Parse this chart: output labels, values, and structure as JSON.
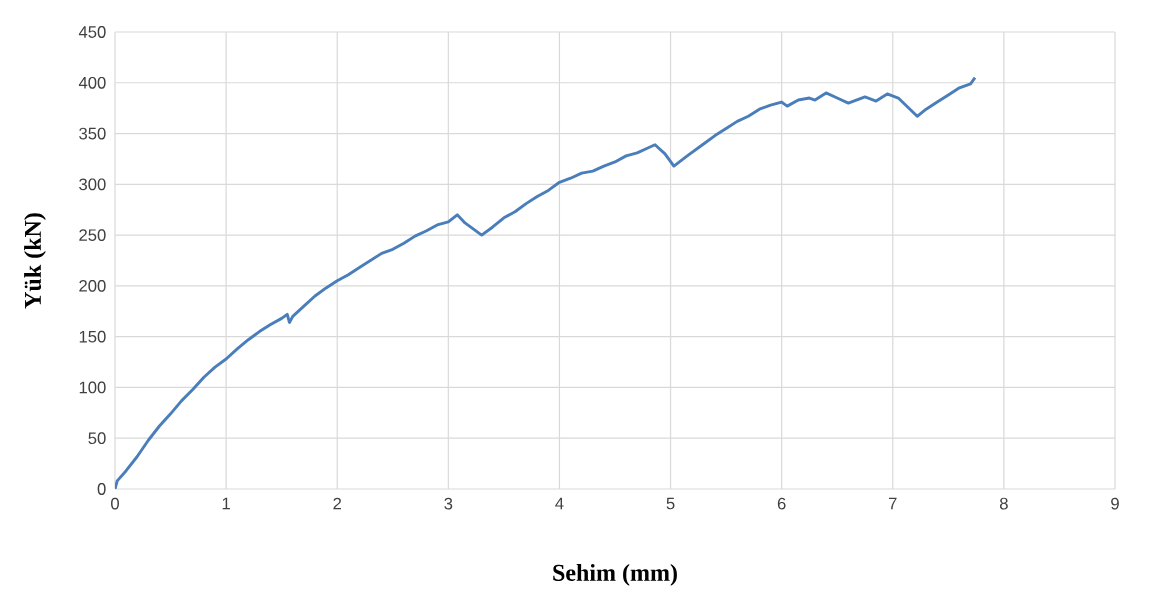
{
  "chart_data": {
    "type": "line",
    "xlabel": "Sehim (mm)",
    "ylabel": "Yük (kN)",
    "xlim": [
      0,
      9
    ],
    "xticks": [
      0,
      1,
      2,
      3,
      4,
      5,
      6,
      7,
      8,
      9
    ],
    "ylim": [
      0,
      450
    ],
    "yticks": [
      0,
      50,
      100,
      150,
      200,
      250,
      300,
      350,
      400,
      450
    ],
    "grid": true,
    "marker": "none",
    "line_style": "solid",
    "series": [
      {
        "color": "#4a7ebb",
        "x": [
          0,
          0.02,
          0.1,
          0.2,
          0.3,
          0.4,
          0.5,
          0.6,
          0.7,
          0.8,
          0.9,
          1.0,
          1.1,
          1.2,
          1.3,
          1.4,
          1.5,
          1.55,
          1.57,
          1.6,
          1.7,
          1.8,
          1.9,
          2.0,
          2.1,
          2.2,
          2.3,
          2.4,
          2.5,
          2.6,
          2.7,
          2.8,
          2.9,
          3.0,
          3.08,
          3.15,
          3.3,
          3.4,
          3.5,
          3.6,
          3.7,
          3.8,
          3.9,
          4.0,
          4.1,
          4.2,
          4.3,
          4.4,
          4.5,
          4.6,
          4.7,
          4.8,
          4.86,
          4.95,
          5.03,
          5.15,
          5.3,
          5.4,
          5.5,
          5.6,
          5.7,
          5.8,
          5.9,
          6.0,
          6.05,
          6.15,
          6.25,
          6.3,
          6.4,
          6.5,
          6.6,
          6.75,
          6.85,
          6.95,
          7.05,
          7.22,
          7.3,
          7.4,
          7.5,
          7.6,
          7.7,
          7.74
        ],
        "values": [
          0,
          8,
          18,
          32,
          48,
          62,
          74,
          87,
          98,
          110,
          120,
          128,
          138,
          147,
          155,
          162,
          168,
          172,
          164,
          170,
          180,
          190,
          198,
          205,
          211,
          218,
          225,
          232,
          236,
          242,
          249,
          254,
          260,
          263,
          270,
          262,
          250,
          258,
          267,
          273,
          281,
          288,
          294,
          302,
          306,
          311,
          313,
          318,
          322,
          328,
          331,
          336,
          339,
          330,
          318,
          328,
          340,
          348,
          355,
          362,
          367,
          374,
          378,
          381,
          377,
          383,
          385,
          383,
          390,
          385,
          380,
          386,
          382,
          389,
          385,
          367,
          374,
          381,
          388,
          395,
          399,
          405
        ]
      }
    ]
  }
}
